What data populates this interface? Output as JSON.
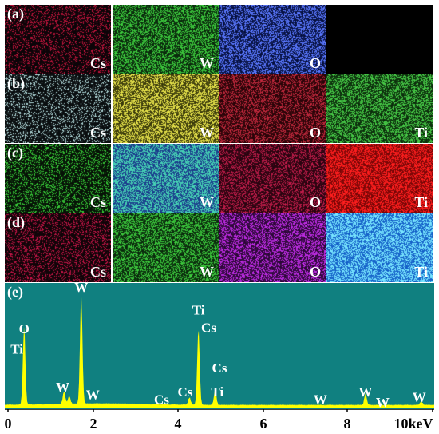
{
  "panels": [
    {
      "label": "(a)",
      "maps": [
        {
          "element": "Cs",
          "color": "#c0143c",
          "density": 0.25,
          "bg": "#0c0408"
        },
        {
          "element": "W",
          "color": "#3cc83c",
          "density": 0.55,
          "bg": "#0a2a0c"
        },
        {
          "element": "O",
          "color": "#5a78ff",
          "density": 0.55,
          "bg": "#061040"
        },
        {
          "element": "",
          "color": "#000000",
          "density": 0.0,
          "bg": "#000000"
        }
      ]
    },
    {
      "label": "(b)",
      "maps": [
        {
          "element": "Cs",
          "color": "#b0d8d8",
          "density": 0.22,
          "bg": "#0a0e10"
        },
        {
          "element": "W",
          "color": "#e6e24a",
          "density": 0.6,
          "bg": "#3a3a0a"
        },
        {
          "element": "O",
          "color": "#c0283c",
          "density": 0.45,
          "bg": "#2a0408"
        },
        {
          "element": "Ti",
          "color": "#46c846",
          "density": 0.55,
          "bg": "#0c2e0c"
        }
      ]
    },
    {
      "label": "(c)",
      "maps": [
        {
          "element": "Cs",
          "color": "#36c836",
          "density": 0.3,
          "bg": "#061206"
        },
        {
          "element": "W",
          "color": "#46d2b4",
          "density": 0.65,
          "bg": "#1a3c8c"
        },
        {
          "element": "O",
          "color": "#c01c4a",
          "density": 0.42,
          "bg": "#2a0410"
        },
        {
          "element": "Ti",
          "color": "#ff1e1e",
          "density": 0.65,
          "bg": "#780606"
        }
      ]
    },
    {
      "label": "(d)",
      "maps": [
        {
          "element": "Cs",
          "color": "#c01446",
          "density": 0.28,
          "bg": "#100408"
        },
        {
          "element": "W",
          "color": "#3cc83c",
          "density": 0.55,
          "bg": "#0a2a0c"
        },
        {
          "element": "O",
          "color": "#c02ce6",
          "density": 0.5,
          "bg": "#2c0838"
        },
        {
          "element": "Ti",
          "color": "#78e6ff",
          "density": 0.65,
          "bg": "#1460c8"
        }
      ]
    }
  ],
  "spectrum": {
    "label": "(e)",
    "background": "#108080",
    "line_color": "#ffff00",
    "x_range": [
      0,
      10
    ],
    "x_ticks": [
      "0",
      "2",
      "4",
      "6",
      "8",
      "10keV"
    ],
    "peaks": [
      {
        "x": 0.45,
        "height": 0.62
      },
      {
        "x": 1.38,
        "height": 0.1
      },
      {
        "x": 1.5,
        "height": 0.06
      },
      {
        "x": 1.78,
        "height": 0.86
      },
      {
        "x": 4.3,
        "height": 0.06
      },
      {
        "x": 4.51,
        "height": 0.6
      },
      {
        "x": 4.9,
        "height": 0.12
      },
      {
        "x": 8.4,
        "height": 0.09
      },
      {
        "x": 9.7,
        "height": 0.03
      }
    ],
    "peak_labels": [
      {
        "text": "Ti",
        "x": 0.28,
        "y": 0.56
      },
      {
        "text": "O",
        "x": 0.45,
        "y": 0.4
      },
      {
        "text": "W",
        "x": 1.78,
        "y": 0.07
      },
      {
        "text": "W",
        "x": 1.35,
        "y": 0.86
      },
      {
        "text": "W",
        "x": 2.05,
        "y": 0.92
      },
      {
        "text": "Ti",
        "x": 4.51,
        "y": 0.25
      },
      {
        "text": "Cs",
        "x": 4.75,
        "y": 0.39
      },
      {
        "text": "Cs",
        "x": 3.65,
        "y": 0.96
      },
      {
        "text": "Cs",
        "x": 4.2,
        "y": 0.9
      },
      {
        "text": "Cs",
        "x": 5.0,
        "y": 0.71
      },
      {
        "text": "Ti",
        "x": 4.95,
        "y": 0.9
      },
      {
        "text": "W",
        "x": 7.35,
        "y": 0.96
      },
      {
        "text": "W",
        "x": 8.4,
        "y": 0.9
      },
      {
        "text": "W",
        "x": 8.8,
        "y": 0.98
      },
      {
        "text": "W",
        "x": 9.65,
        "y": 0.94
      }
    ]
  }
}
